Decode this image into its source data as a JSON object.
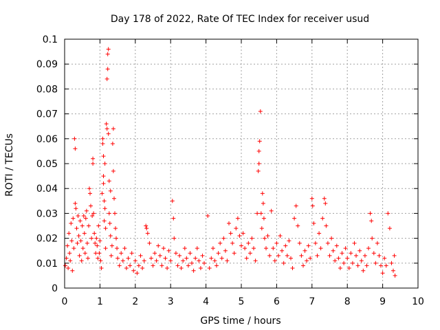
{
  "chart_data": {
    "type": "scatter",
    "title": "Day 178 of 2022, Rate Of TEC Index for receiver usud",
    "xlabel": "GPS time / hours",
    "ylabel": "ROTI / TECUs",
    "xlim": [
      0,
      10
    ],
    "ylim": [
      0,
      0.1
    ],
    "xticks": [
      0,
      1,
      2,
      3,
      4,
      5,
      6,
      7,
      8,
      9,
      10
    ],
    "yticks": [
      0,
      0.01,
      0.02,
      0.03,
      0.04,
      0.05,
      0.06,
      0.07,
      0.08,
      0.09,
      0.1
    ],
    "xtick_labels": [
      "0",
      "1",
      "2",
      "3",
      "4",
      "5",
      "6",
      "7",
      "8",
      "9",
      "10"
    ],
    "ytick_labels": [
      "0",
      "0.01",
      "0.02",
      "0.03",
      "0.04",
      "0.05",
      "0.06",
      "0.07",
      "0.08",
      "0.09",
      "0.1"
    ],
    "grid": true,
    "marker": "+",
    "color": "#ff0000",
    "series": [
      {
        "name": "ROTI",
        "points": [
          [
            0.02,
            0.009
          ],
          [
            0.05,
            0.012
          ],
          [
            0.08,
            0.017
          ],
          [
            0.1,
            0.008
          ],
          [
            0.12,
            0.022
          ],
          [
            0.14,
            0.014
          ],
          [
            0.16,
            0.011
          ],
          [
            0.18,
            0.026
          ],
          [
            0.2,
            0.019
          ],
          [
            0.22,
            0.007
          ],
          [
            0.24,
            0.028
          ],
          [
            0.26,
            0.016
          ],
          [
            0.28,
            0.06
          ],
          [
            0.3,
            0.056
          ],
          [
            0.3,
            0.034
          ],
          [
            0.32,
            0.032
          ],
          [
            0.34,
            0.024
          ],
          [
            0.36,
            0.018
          ],
          [
            0.38,
            0.029
          ],
          [
            0.4,
            0.021
          ],
          [
            0.42,
            0.013
          ],
          [
            0.44,
            0.027
          ],
          [
            0.46,
            0.019
          ],
          [
            0.48,
            0.011
          ],
          [
            0.5,
            0.025
          ],
          [
            0.52,
            0.016
          ],
          [
            0.54,
            0.029
          ],
          [
            0.56,
            0.022
          ],
          [
            0.58,
            0.014
          ],
          [
            0.6,
            0.028
          ],
          [
            0.62,
            0.031
          ],
          [
            0.64,
            0.018
          ],
          [
            0.66,
            0.012
          ],
          [
            0.68,
            0.025
          ],
          [
            0.7,
            0.04
          ],
          [
            0.72,
            0.038
          ],
          [
            0.74,
            0.033
          ],
          [
            0.76,
            0.02
          ],
          [
            0.78,
            0.029
          ],
          [
            0.8,
            0.052
          ],
          [
            0.8,
            0.05
          ],
          [
            0.82,
            0.03
          ],
          [
            0.84,
            0.022
          ],
          [
            0.86,
            0.018
          ],
          [
            0.88,
            0.014
          ],
          [
            0.9,
            0.02
          ],
          [
            0.92,
            0.017
          ],
          [
            0.94,
            0.012
          ],
          [
            0.96,
            0.025
          ],
          [
            0.98,
            0.014
          ],
          [
            1.0,
            0.019
          ],
          [
            1.02,
            0.011
          ],
          [
            1.04,
            0.008
          ],
          [
            1.06,
            0.038
          ],
          [
            1.08,
            0.06
          ],
          [
            1.08,
            0.058
          ],
          [
            1.1,
            0.053
          ],
          [
            1.1,
            0.045
          ],
          [
            1.1,
            0.042
          ],
          [
            1.12,
            0.035
          ],
          [
            1.12,
            0.027
          ],
          [
            1.14,
            0.05
          ],
          [
            1.14,
            0.032
          ],
          [
            1.16,
            0.024
          ],
          [
            1.16,
            0.016
          ],
          [
            1.18,
            0.066
          ],
          [
            1.2,
            0.064
          ],
          [
            1.2,
            0.084
          ],
          [
            1.22,
            0.088
          ],
          [
            1.22,
            0.094
          ],
          [
            1.24,
            0.096
          ],
          [
            1.24,
            0.062
          ],
          [
            1.26,
            0.043
          ],
          [
            1.26,
            0.03
          ],
          [
            1.28,
            0.026
          ],
          [
            1.3,
            0.039
          ],
          [
            1.3,
            0.021
          ],
          [
            1.32,
            0.013
          ],
          [
            1.34,
            0.017
          ],
          [
            1.36,
            0.058
          ],
          [
            1.38,
            0.064
          ],
          [
            1.38,
            0.047
          ],
          [
            1.4,
            0.036
          ],
          [
            1.42,
            0.03
          ],
          [
            1.44,
            0.024
          ],
          [
            1.46,
            0.02
          ],
          [
            1.48,
            0.016
          ],
          [
            1.5,
            0.012
          ],
          [
            1.55,
            0.009
          ],
          [
            1.6,
            0.014
          ],
          [
            1.65,
            0.011
          ],
          [
            1.7,
            0.016
          ],
          [
            1.75,
            0.008
          ],
          [
            1.8,
            0.012
          ],
          [
            1.85,
            0.009
          ],
          [
            1.9,
            0.014
          ],
          [
            1.95,
            0.007
          ],
          [
            2.0,
            0.011
          ],
          [
            2.05,
            0.006
          ],
          [
            2.1,
            0.009
          ],
          [
            2.15,
            0.013
          ],
          [
            2.2,
            0.008
          ],
          [
            2.25,
            0.011
          ],
          [
            2.3,
            0.025
          ],
          [
            2.32,
            0.024
          ],
          [
            2.35,
            0.022
          ],
          [
            2.4,
            0.018
          ],
          [
            2.45,
            0.012
          ],
          [
            2.5,
            0.009
          ],
          [
            2.55,
            0.014
          ],
          [
            2.6,
            0.011
          ],
          [
            2.65,
            0.017
          ],
          [
            2.7,
            0.013
          ],
          [
            2.75,
            0.009
          ],
          [
            2.8,
            0.016
          ],
          [
            2.85,
            0.012
          ],
          [
            2.9,
            0.008
          ],
          [
            2.95,
            0.015
          ],
          [
            3.0,
            0.011
          ],
          [
            3.05,
            0.035
          ],
          [
            3.08,
            0.028
          ],
          [
            3.1,
            0.02
          ],
          [
            3.15,
            0.014
          ],
          [
            3.2,
            0.009
          ],
          [
            3.25,
            0.013
          ],
          [
            3.3,
            0.008
          ],
          [
            3.35,
            0.011
          ],
          [
            3.4,
            0.016
          ],
          [
            3.45,
            0.012
          ],
          [
            3.5,
            0.009
          ],
          [
            3.55,
            0.014
          ],
          [
            3.6,
            0.01
          ],
          [
            3.65,
            0.007
          ],
          [
            3.7,
            0.012
          ],
          [
            3.75,
            0.016
          ],
          [
            3.8,
            0.011
          ],
          [
            3.85,
            0.008
          ],
          [
            3.9,
            0.013
          ],
          [
            3.95,
            0.01
          ],
          [
            4.05,
            0.029
          ],
          [
            4.1,
            0.008
          ],
          [
            4.15,
            0.012
          ],
          [
            4.2,
            0.016
          ],
          [
            4.25,
            0.011
          ],
          [
            4.3,
            0.009
          ],
          [
            4.35,
            0.014
          ],
          [
            4.4,
            0.018
          ],
          [
            4.45,
            0.012
          ],
          [
            4.5,
            0.02
          ],
          [
            4.55,
            0.015
          ],
          [
            4.6,
            0.011
          ],
          [
            4.65,
            0.026
          ],
          [
            4.7,
            0.022
          ],
          [
            4.75,
            0.018
          ],
          [
            4.8,
            0.014
          ],
          [
            4.85,
            0.024
          ],
          [
            4.9,
            0.028
          ],
          [
            4.95,
            0.021
          ],
          [
            5.0,
            0.017
          ],
          [
            5.05,
            0.022
          ],
          [
            5.1,
            0.016
          ],
          [
            5.15,
            0.012
          ],
          [
            5.2,
            0.018
          ],
          [
            5.25,
            0.014
          ],
          [
            5.3,
            0.02
          ],
          [
            5.35,
            0.016
          ],
          [
            5.4,
            0.011
          ],
          [
            5.45,
            0.03
          ],
          [
            5.48,
            0.047
          ],
          [
            5.5,
            0.05
          ],
          [
            5.5,
            0.055
          ],
          [
            5.52,
            0.059
          ],
          [
            5.54,
            0.071
          ],
          [
            5.56,
            0.03
          ],
          [
            5.58,
            0.024
          ],
          [
            5.6,
            0.038
          ],
          [
            5.62,
            0.034
          ],
          [
            5.64,
            0.028
          ],
          [
            5.66,
            0.02
          ],
          [
            5.7,
            0.016
          ],
          [
            5.75,
            0.021
          ],
          [
            5.8,
            0.013
          ],
          [
            5.85,
            0.031
          ],
          [
            5.9,
            0.016
          ],
          [
            5.95,
            0.011
          ],
          [
            6.0,
            0.018
          ],
          [
            6.05,
            0.013
          ],
          [
            6.1,
            0.021
          ],
          [
            6.15,
            0.015
          ],
          [
            6.2,
            0.01
          ],
          [
            6.25,
            0.017
          ],
          [
            6.3,
            0.013
          ],
          [
            6.35,
            0.019
          ],
          [
            6.4,
            0.012
          ],
          [
            6.45,
            0.008
          ],
          [
            6.5,
            0.028
          ],
          [
            6.55,
            0.033
          ],
          [
            6.6,
            0.025
          ],
          [
            6.65,
            0.018
          ],
          [
            6.7,
            0.013
          ],
          [
            6.75,
            0.009
          ],
          [
            6.8,
            0.015
          ],
          [
            6.85,
            0.011
          ],
          [
            6.9,
            0.017
          ],
          [
            6.95,
            0.012
          ],
          [
            7.0,
            0.036
          ],
          [
            7.02,
            0.033
          ],
          [
            7.05,
            0.026
          ],
          [
            7.1,
            0.018
          ],
          [
            7.15,
            0.013
          ],
          [
            7.2,
            0.022
          ],
          [
            7.25,
            0.016
          ],
          [
            7.3,
            0.028
          ],
          [
            7.35,
            0.036
          ],
          [
            7.38,
            0.034
          ],
          [
            7.4,
            0.025
          ],
          [
            7.45,
            0.018
          ],
          [
            7.5,
            0.013
          ],
          [
            7.55,
            0.02
          ],
          [
            7.6,
            0.015
          ],
          [
            7.65,
            0.011
          ],
          [
            7.7,
            0.017
          ],
          [
            7.75,
            0.012
          ],
          [
            7.8,
            0.008
          ],
          [
            7.85,
            0.014
          ],
          [
            7.9,
            0.01
          ],
          [
            7.95,
            0.016
          ],
          [
            8.0,
            0.012
          ],
          [
            8.05,
            0.008
          ],
          [
            8.1,
            0.014
          ],
          [
            8.15,
            0.01
          ],
          [
            8.2,
            0.018
          ],
          [
            8.25,
            0.013
          ],
          [
            8.3,
            0.009
          ],
          [
            8.35,
            0.015
          ],
          [
            8.4,
            0.011
          ],
          [
            8.45,
            0.007
          ],
          [
            8.5,
            0.013
          ],
          [
            8.55,
            0.009
          ],
          [
            8.6,
            0.016
          ],
          [
            8.65,
            0.03
          ],
          [
            8.68,
            0.027
          ],
          [
            8.7,
            0.02
          ],
          [
            8.75,
            0.014
          ],
          [
            8.8,
            0.01
          ],
          [
            8.85,
            0.018
          ],
          [
            8.9,
            0.013
          ],
          [
            8.95,
            0.009
          ],
          [
            9.0,
            0.006
          ],
          [
            9.05,
            0.012
          ],
          [
            9.1,
            0.009
          ],
          [
            9.15,
            0.03
          ],
          [
            9.2,
            0.024
          ],
          [
            9.25,
            0.01
          ],
          [
            9.3,
            0.007
          ],
          [
            9.33,
            0.013
          ],
          [
            9.35,
            0.005
          ]
        ]
      }
    ]
  }
}
